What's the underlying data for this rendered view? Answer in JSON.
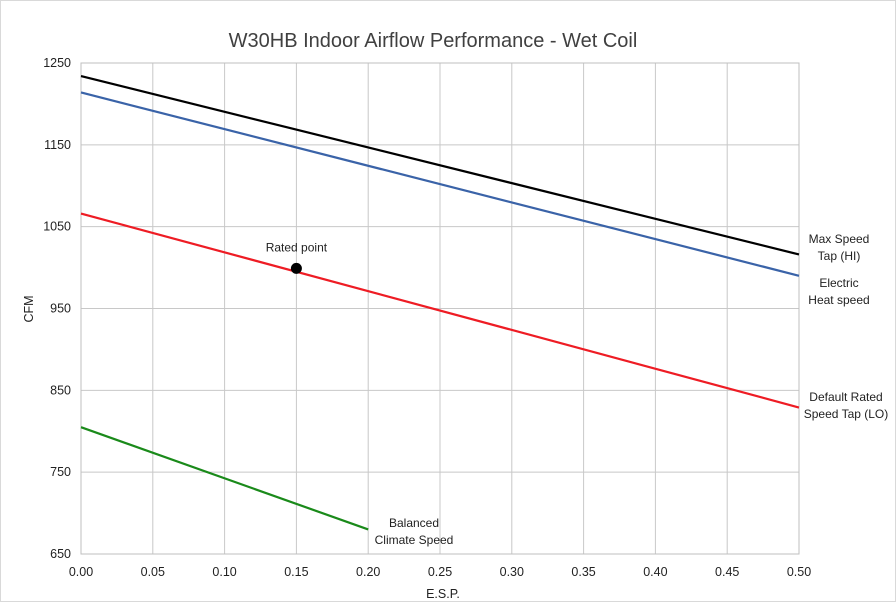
{
  "chart_data": {
    "type": "line",
    "title": "W30HB Indoor Airflow Performance - Wet Coil",
    "xlabel": "E.S.P.",
    "ylabel": "CFM",
    "xlim": [
      0,
      0.5
    ],
    "ylim": [
      650,
      1250
    ],
    "xticks": [
      0,
      0.05,
      0.1,
      0.15,
      0.2,
      0.25,
      0.3,
      0.35,
      0.4,
      0.45,
      0.5
    ],
    "xtick_labels": [
      "0.00",
      "0.05",
      "0.10",
      "0.15",
      "0.20",
      "0.25",
      "0.30",
      "0.35",
      "0.40",
      "0.45",
      "0.50"
    ],
    "yticks": [
      650,
      750,
      850,
      950,
      1050,
      1150,
      1250
    ],
    "ytick_labels": [
      "650",
      "750",
      "850",
      "950",
      "1050",
      "1150",
      "1250"
    ],
    "grid": true,
    "legend": "none",
    "series": [
      {
        "label_lines": [
          "Max Speed",
          "Tap (HI)"
        ],
        "color": "#000000",
        "x": [
          0,
          0.5
        ],
        "y": [
          1234,
          1016
        ]
      },
      {
        "label_lines": [
          "Electric",
          "Heat speed"
        ],
        "color": "#3a63a8",
        "x": [
          0,
          0.5
        ],
        "y": [
          1214,
          990
        ]
      },
      {
        "label_lines": [
          "Default Rated",
          "Speed Tap (LO)"
        ],
        "color": "#ee1c24",
        "x": [
          0,
          0.5
        ],
        "y": [
          1066,
          829
        ]
      },
      {
        "label_lines": [
          "Balanced",
          "Climate Speed"
        ],
        "color": "#1a8a1a",
        "x": [
          0,
          0.2
        ],
        "y": [
          805,
          680
        ]
      }
    ],
    "annotations": [
      {
        "text": "Rated point",
        "x": 0.15,
        "y": 999,
        "marker_color": "#000000"
      }
    ]
  }
}
